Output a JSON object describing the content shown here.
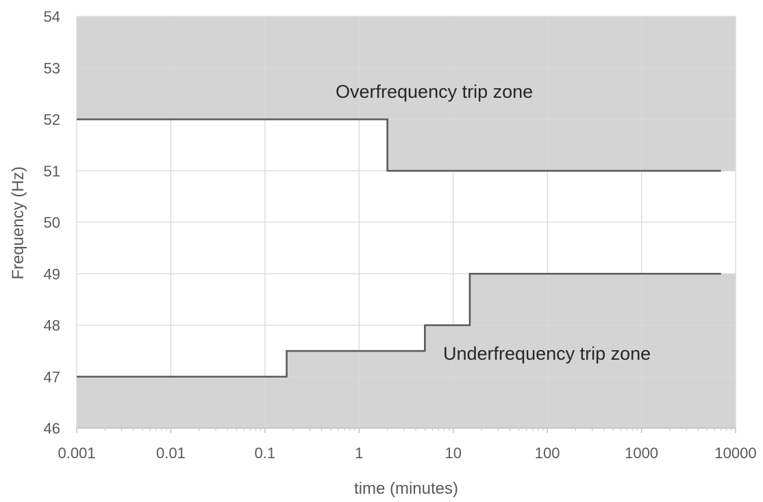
{
  "chart_data": {
    "type": "line",
    "x_scale": "log",
    "xlabel": "time (minutes)",
    "ylabel": "Frequency (Hz)",
    "xlim": [
      0.001,
      10000
    ],
    "ylim": [
      46,
      54
    ],
    "x_ticks": [
      "0.001",
      "0.01",
      "0.1",
      "1",
      "10",
      "100",
      "1000",
      "10000"
    ],
    "y_ticks": [
      "46",
      "47",
      "48",
      "49",
      "50",
      "51",
      "52",
      "53",
      "54"
    ],
    "grid": true,
    "colors": {
      "zone_fill": "#d4d4d4",
      "boundary_line": "#5a5a5a",
      "grid": "#d9d9d9",
      "text": "#595959"
    },
    "series": [
      {
        "name": "Overfrequency trip zone",
        "points": [
          [
            0.001,
            52
          ],
          [
            2,
            52
          ],
          [
            2,
            51
          ],
          [
            7000,
            51
          ]
        ]
      },
      {
        "name": "Underfrequency trip zone",
        "points": [
          [
            0.001,
            47
          ],
          [
            0.17,
            47
          ],
          [
            0.17,
            47.5
          ],
          [
            5,
            47.5
          ],
          [
            5,
            48
          ],
          [
            15,
            48
          ],
          [
            15,
            49
          ],
          [
            7000,
            49
          ]
        ]
      }
    ],
    "annotations": [
      "Overfrequency trip zone",
      "Underfrequency trip zone"
    ]
  }
}
